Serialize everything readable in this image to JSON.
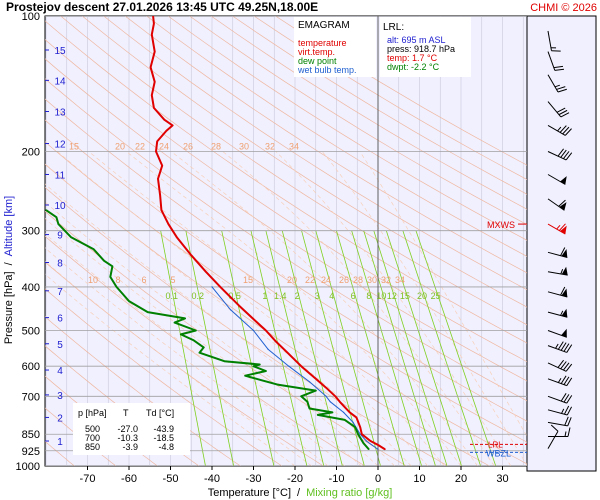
{
  "header": {
    "title": "Prostejov   descent  27.01.2026 13:45 UTC  49.25N,18.00E",
    "credit": "CHMI © 2026"
  },
  "legend": {
    "heading": "EMAGRAM",
    "items": [
      {
        "label": "temperature",
        "color": "#e00000"
      },
      {
        "label": "virt.temp.",
        "color": "#e00000"
      },
      {
        "label": "dew point",
        "color": "#008000"
      },
      {
        "label": "wet bulb temp.",
        "color": "#2060d0"
      }
    ]
  },
  "lrl": {
    "heading": "LRL:",
    "lines": [
      {
        "text": "alt: 695 m ASL",
        "color": "#2020d0"
      },
      {
        "text": "press: 918.7 hPa",
        "color": "#000000"
      },
      {
        "text": "temp: 1.7 °C",
        "color": "#e00000"
      },
      {
        "text": "dwpt: -2.2 °C",
        "color": "#008000"
      }
    ]
  },
  "table": {
    "header": [
      "p [hPa]",
      "T",
      "Td [°C]"
    ],
    "rows": [
      [
        "500",
        "-27.0",
        "-43.9"
      ],
      [
        "700",
        "-10.3",
        "-18.5"
      ],
      [
        "850",
        "-3.9",
        "-4.8"
      ]
    ]
  },
  "markers": {
    "mxws": "MXWS",
    "lrl": "LRL",
    "wbzl": "WBZL"
  },
  "colors": {
    "plot_bg": "#f0f0ff",
    "temperature": "#e00000",
    "dew_point": "#008000",
    "wet_bulb": "#2060d0",
    "mixing_ratio": "#80d020",
    "dry_adiabat": "#f0b8a0",
    "moist_adiabat": "#f8d0b8",
    "isotherm": "#c8c8d8",
    "isobar": "#a0a0a0",
    "altitude": "#2020d0",
    "credit": "#e00000"
  },
  "chart_data": {
    "type": "line",
    "xlabel": "Temperature [°C]",
    "xlabel_sep": "/",
    "xlabel2": "Mixing ratio [g/kg]",
    "ylabel": "Pressure [hPa]",
    "ylabel_sep": "/",
    "ylabel2": "Altitude [km]",
    "xlim": [
      -80,
      35
    ],
    "ylim": [
      1000,
      100
    ],
    "yscale": "log",
    "x_ticks": [
      -70,
      -60,
      -50,
      -40,
      -30,
      -20,
      -10,
      0,
      10,
      20,
      30
    ],
    "y_ticks": [
      100,
      200,
      300,
      400,
      500,
      600,
      700,
      850,
      925,
      1000
    ],
    "altitude_ticks": [
      {
        "km": 1,
        "p": 880
      },
      {
        "km": 2,
        "p": 780
      },
      {
        "km": 3,
        "p": 695
      },
      {
        "km": 4,
        "p": 612
      },
      {
        "km": 5,
        "p": 535
      },
      {
        "km": 6,
        "p": 468
      },
      {
        "km": 7,
        "p": 408
      },
      {
        "km": 8,
        "p": 353
      },
      {
        "km": 9,
        "p": 306
      },
      {
        "km": 10,
        "p": 263
      },
      {
        "km": 11,
        "p": 225
      },
      {
        "km": 12,
        "p": 192
      },
      {
        "km": 13,
        "p": 163
      },
      {
        "km": 14,
        "p": 139
      },
      {
        "km": 15,
        "p": 119
      }
    ],
    "mixing_ratio_labels_upper": [
      "15",
      "20",
      "22",
      "24",
      "26",
      "28",
      "30",
      "32",
      "34"
    ],
    "mixing_ratio_labels_lower": [
      "10",
      "8",
      "6",
      "5",
      "15",
      "20",
      "22",
      "24",
      "26",
      "28",
      "30",
      "32",
      "34"
    ],
    "mixing_ratio_values": [
      "0.1",
      "0.2",
      "0.5",
      "1",
      "1.4",
      "2",
      "3",
      "4",
      "6",
      "8",
      "10",
      "12",
      "15",
      "20",
      "25"
    ],
    "series": [
      {
        "name": "temperature",
        "points": [
          {
            "p": 918.7,
            "t": 1.7
          },
          {
            "p": 900,
            "t": 0.2
          },
          {
            "p": 880,
            "t": -1.8
          },
          {
            "p": 850,
            "t": -3.9
          },
          {
            "p": 820,
            "t": -4.3
          },
          {
            "p": 780,
            "t": -5.2
          },
          {
            "p": 760,
            "t": -6.8
          },
          {
            "p": 740,
            "t": -8.0
          },
          {
            "p": 720,
            "t": -9.2
          },
          {
            "p": 700,
            "t": -10.3
          },
          {
            "p": 670,
            "t": -12.5
          },
          {
            "p": 640,
            "t": -15.0
          },
          {
            "p": 600,
            "t": -18.5
          },
          {
            "p": 560,
            "t": -21.8
          },
          {
            "p": 530,
            "t": -24.5
          },
          {
            "p": 500,
            "t": -27.0
          },
          {
            "p": 470,
            "t": -30.2
          },
          {
            "p": 440,
            "t": -33.5
          },
          {
            "p": 400,
            "t": -38.0
          },
          {
            "p": 370,
            "t": -41.5
          },
          {
            "p": 340,
            "t": -45.0
          },
          {
            "p": 310,
            "t": -48.5
          },
          {
            "p": 290,
            "t": -50.5
          },
          {
            "p": 270,
            "t": -52.2
          },
          {
            "p": 250,
            "t": -52.5
          },
          {
            "p": 230,
            "t": -53.0
          },
          {
            "p": 215,
            "t": -52.0
          },
          {
            "p": 200,
            "t": -53.5
          },
          {
            "p": 190,
            "t": -53.2
          },
          {
            "p": 180,
            "t": -51.0
          },
          {
            "p": 175,
            "t": -49.5
          },
          {
            "p": 170,
            "t": -51.5
          },
          {
            "p": 160,
            "t": -54.0
          },
          {
            "p": 150,
            "t": -54.5
          },
          {
            "p": 140,
            "t": -53.8
          },
          {
            "p": 130,
            "t": -54.8
          },
          {
            "p": 120,
            "t": -53.8
          },
          {
            "p": 110,
            "t": -54.5
          },
          {
            "p": 104,
            "t": -54.0
          },
          {
            "p": 100,
            "t": -54.2
          }
        ]
      },
      {
        "name": "dew point",
        "points": [
          {
            "p": 918.7,
            "t": -2.2
          },
          {
            "p": 890,
            "t": -3.5
          },
          {
            "p": 850,
            "t": -4.8
          },
          {
            "p": 820,
            "t": -5.5
          },
          {
            "p": 790,
            "t": -8.0
          },
          {
            "p": 770,
            "t": -14.5
          },
          {
            "p": 760,
            "t": -11.0
          },
          {
            "p": 745,
            "t": -16.5
          },
          {
            "p": 720,
            "t": -17.0
          },
          {
            "p": 700,
            "t": -18.5
          },
          {
            "p": 680,
            "t": -15.0
          },
          {
            "p": 660,
            "t": -24.0
          },
          {
            "p": 645,
            "t": -28.0
          },
          {
            "p": 630,
            "t": -32.0
          },
          {
            "p": 615,
            "t": -27.0
          },
          {
            "p": 600,
            "t": -30.0
          },
          {
            "p": 595,
            "t": -28.5
          },
          {
            "p": 585,
            "t": -37.0
          },
          {
            "p": 560,
            "t": -43.0
          },
          {
            "p": 545,
            "t": -42.0
          },
          {
            "p": 525,
            "t": -44.5
          },
          {
            "p": 510,
            "t": -47.5
          },
          {
            "p": 500,
            "t": -43.9
          },
          {
            "p": 480,
            "t": -49.0
          },
          {
            "p": 470,
            "t": -46.5
          },
          {
            "p": 455,
            "t": -55.5
          },
          {
            "p": 430,
            "t": -60.0
          },
          {
            "p": 400,
            "t": -63.0
          },
          {
            "p": 380,
            "t": -64.5
          },
          {
            "p": 360,
            "t": -64.0
          },
          {
            "p": 350,
            "t": -66.0
          },
          {
            "p": 330,
            "t": -68.5
          },
          {
            "p": 310,
            "t": -74.0
          },
          {
            "p": 290,
            "t": -77.0
          },
          {
            "p": 280,
            "t": -77.5
          },
          {
            "p": 270,
            "t": -80.0
          }
        ]
      },
      {
        "name": "wet bulb temp.",
        "points": [
          {
            "p": 918.7,
            "t": 0.0
          },
          {
            "p": 880,
            "t": -2.8
          },
          {
            "p": 850,
            "t": -4.3
          },
          {
            "p": 800,
            "t": -6.0
          },
          {
            "p": 760,
            "t": -8.3
          },
          {
            "p": 720,
            "t": -11.5
          },
          {
            "p": 700,
            "t": -12.5
          },
          {
            "p": 650,
            "t": -16.5
          },
          {
            "p": 600,
            "t": -21.5
          },
          {
            "p": 550,
            "t": -26.5
          },
          {
            "p": 500,
            "t": -30.0
          },
          {
            "p": 450,
            "t": -35.5
          },
          {
            "p": 400,
            "t": -40.0
          }
        ]
      }
    ],
    "wind_barbs": [
      {
        "p": 915,
        "dir": 210,
        "speed": 10
      },
      {
        "p": 860,
        "dir": 270,
        "speed": 15
      },
      {
        "p": 800,
        "dir": 280,
        "speed": 20
      },
      {
        "p": 750,
        "dir": 285,
        "speed": 25
      },
      {
        "p": 700,
        "dir": 290,
        "speed": 30
      },
      {
        "p": 640,
        "dir": 290,
        "speed": 35
      },
      {
        "p": 590,
        "dir": 295,
        "speed": 40
      },
      {
        "p": 540,
        "dir": 290,
        "speed": 45
      },
      {
        "p": 500,
        "dir": 290,
        "speed": 50
      },
      {
        "p": 455,
        "dir": 285,
        "speed": 55
      },
      {
        "p": 410,
        "dir": 285,
        "speed": 60
      },
      {
        "p": 370,
        "dir": 280,
        "speed": 55
      },
      {
        "p": 335,
        "dir": 285,
        "speed": 60
      },
      {
        "p": 290,
        "dir": 300,
        "speed": 65
      },
      {
        "p": 255,
        "dir": 305,
        "speed": 60
      },
      {
        "p": 225,
        "dir": 300,
        "speed": 50
      },
      {
        "p": 200,
        "dir": 295,
        "speed": 40
      },
      {
        "p": 175,
        "dir": 300,
        "speed": 35
      },
      {
        "p": 155,
        "dir": 320,
        "speed": 30
      },
      {
        "p": 135,
        "dir": 330,
        "speed": 25
      },
      {
        "p": 120,
        "dir": 340,
        "speed": 20
      },
      {
        "p": 108,
        "dir": 350,
        "speed": 15
      }
    ],
    "mxws_pressure": 290
  }
}
